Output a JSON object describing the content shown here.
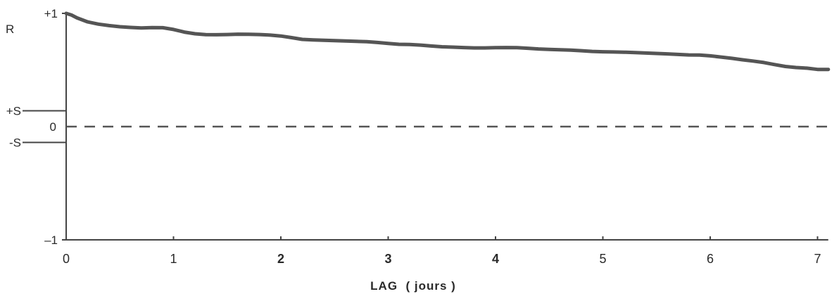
{
  "chart_data": {
    "type": "line",
    "title": "",
    "xlabel": "LAG  ( jours )",
    "ylabel": "R",
    "xlim": [
      0,
      7.1
    ],
    "ylim": [
      -1,
      1
    ],
    "x_ticks": [
      {
        "value": 0,
        "label": "0",
        "bold": false
      },
      {
        "value": 1,
        "label": "1",
        "bold": false
      },
      {
        "value": 2,
        "label": "2",
        "bold": true
      },
      {
        "value": 3,
        "label": "3",
        "bold": true
      },
      {
        "value": 4,
        "label": "4",
        "bold": true
      },
      {
        "value": 5,
        "label": "5",
        "bold": false
      },
      {
        "value": 6,
        "label": "6",
        "bold": false
      },
      {
        "value": 7,
        "label": "7",
        "bold": false
      }
    ],
    "y_ticks": [
      {
        "value": 1,
        "label": "+1"
      },
      {
        "value": 0.14,
        "label": "+S"
      },
      {
        "value": 0,
        "label": "0"
      },
      {
        "value": -0.14,
        "label": "-S"
      },
      {
        "value": -1,
        "label": "–1"
      }
    ],
    "zero_line": {
      "value": 0,
      "style": "dashed"
    },
    "significance_level": 0.14,
    "grid": false,
    "legend": "none",
    "series": [
      {
        "color": "#555555",
        "x": [
          0,
          0.05,
          0.1,
          0.2,
          0.3,
          0.4,
          0.5,
          0.6,
          0.7,
          0.8,
          0.9,
          1.0,
          1.1,
          1.2,
          1.3,
          1.4,
          1.5,
          1.6,
          1.7,
          1.8,
          1.9,
          2.0,
          2.1,
          2.2,
          2.3,
          2.4,
          2.5,
          2.6,
          2.7,
          2.8,
          2.9,
          3.0,
          3.1,
          3.2,
          3.3,
          3.4,
          3.5,
          3.6,
          3.7,
          3.8,
          3.9,
          4.0,
          4.1,
          4.2,
          4.3,
          4.4,
          4.5,
          4.6,
          4.7,
          4.8,
          4.9,
          5.0,
          5.1,
          5.2,
          5.3,
          5.4,
          5.5,
          5.6,
          5.7,
          5.8,
          5.9,
          6.0,
          6.1,
          6.2,
          6.3,
          6.4,
          6.5,
          6.6,
          6.7,
          6.8,
          6.9,
          7.0,
          7.1
        ],
        "y": [
          1.0,
          0.985,
          0.96,
          0.925,
          0.905,
          0.892,
          0.882,
          0.876,
          0.871,
          0.874,
          0.873,
          0.858,
          0.835,
          0.82,
          0.812,
          0.811,
          0.813,
          0.816,
          0.815,
          0.813,
          0.808,
          0.8,
          0.786,
          0.77,
          0.766,
          0.763,
          0.759,
          0.756,
          0.753,
          0.75,
          0.743,
          0.734,
          0.727,
          0.725,
          0.72,
          0.712,
          0.705,
          0.702,
          0.698,
          0.695,
          0.695,
          0.697,
          0.698,
          0.697,
          0.692,
          0.686,
          0.682,
          0.679,
          0.675,
          0.67,
          0.664,
          0.661,
          0.659,
          0.657,
          0.654,
          0.65,
          0.646,
          0.642,
          0.637,
          0.633,
          0.632,
          0.625,
          0.614,
          0.603,
          0.59,
          0.579,
          0.566,
          0.548,
          0.531,
          0.522,
          0.516,
          0.505,
          0.505
        ]
      }
    ]
  }
}
